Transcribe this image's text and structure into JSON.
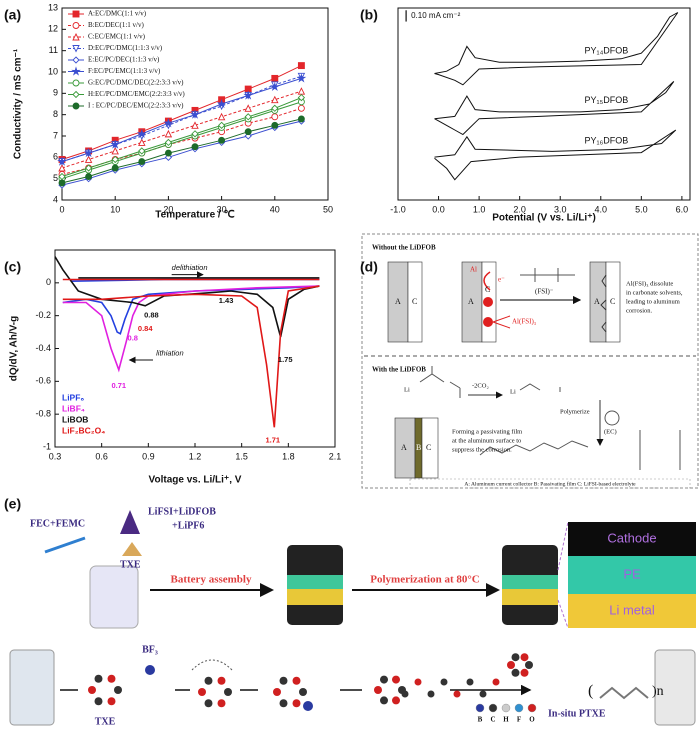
{
  "chart_data": [
    {
      "type": "line",
      "panel_label": "(a)",
      "xlabel": "Temperature / ℃",
      "ylabel": "Conductivity / mS cm⁻¹",
      "x": [
        0,
        5,
        10,
        15,
        20,
        25,
        30,
        35,
        40,
        45
      ],
      "xlim": [
        0,
        50
      ],
      "xticks": [
        0,
        10,
        20,
        30,
        40,
        50
      ],
      "ylim": [
        4,
        13
      ],
      "yticks": [
        4,
        5,
        6,
        7,
        8,
        9,
        10,
        11,
        12,
        13
      ],
      "series": [
        {
          "name": "A:EC/DMC(1:1 v/v)",
          "color": "#e3262b",
          "marker": "square",
          "filled": true,
          "dashed": false,
          "values": [
            5.9,
            6.3,
            6.8,
            7.2,
            7.7,
            8.2,
            8.7,
            9.2,
            9.7,
            10.3
          ]
        },
        {
          "name": "B:EC/DEC(1:1 v/v)",
          "color": "#e3262b",
          "marker": "circle",
          "filled": false,
          "dashed": true,
          "values": [
            5.2,
            5.5,
            5.9,
            6.2,
            6.6,
            6.9,
            7.2,
            7.6,
            7.9,
            8.3
          ]
        },
        {
          "name": "C:EC/EMC(1:1 v/v)",
          "color": "#e3262b",
          "marker": "triangle",
          "filled": false,
          "dashed": true,
          "values": [
            5.5,
            5.9,
            6.3,
            6.7,
            7.1,
            7.5,
            7.9,
            8.3,
            8.7,
            9.1
          ]
        },
        {
          "name": "D:EC/PC/DMC(1:1:3 v/v)",
          "color": "#3b4fd0",
          "marker": "triangle-down",
          "filled": false,
          "dashed": true,
          "values": [
            5.8,
            6.2,
            6.6,
            7.0,
            7.5,
            8.0,
            8.4,
            8.9,
            9.4,
            9.8
          ]
        },
        {
          "name": "E:EC/PC/DEC(1:1:3 v/v)",
          "color": "#3b4fd0",
          "marker": "diamond",
          "filled": false,
          "dashed": false,
          "values": [
            4.7,
            5.0,
            5.4,
            5.7,
            6.0,
            6.4,
            6.7,
            7.0,
            7.4,
            7.7
          ]
        },
        {
          "name": "F:EC/PC/EMC(1:1:3 v/v)",
          "color": "#3b4fd0",
          "marker": "star",
          "filled": true,
          "dashed": false,
          "values": [
            5.8,
            6.2,
            6.6,
            7.1,
            7.6,
            8.0,
            8.5,
            8.9,
            9.3,
            9.7
          ]
        },
        {
          "name": "G:EC/PC/DMC/DEC(2:2:3:3 v/v)",
          "color": "#3a9a3a",
          "marker": "circle",
          "filled": false,
          "dashed": false,
          "values": [
            5.0,
            5.4,
            5.8,
            6.2,
            6.6,
            7.0,
            7.4,
            7.8,
            8.2,
            8.6
          ]
        },
        {
          "name": "H:EC/PC/DMC/EMC(2:2:3:3 v/v)",
          "color": "#3a9a3a",
          "marker": "diamond",
          "filled": false,
          "dashed": false,
          "values": [
            5.1,
            5.5,
            5.9,
            6.3,
            6.7,
            7.1,
            7.5,
            7.9,
            8.3,
            8.8
          ]
        },
        {
          "name": "I : EC/PC/DEC/EMC(2:2:3:3 v/v)",
          "color": "#1d6b2a",
          "marker": "circle",
          "filled": true,
          "dashed": false,
          "values": [
            4.8,
            5.1,
            5.5,
            5.8,
            6.2,
            6.5,
            6.8,
            7.2,
            7.5,
            7.8
          ]
        }
      ]
    },
    {
      "type": "line",
      "panel_label": "(b)",
      "xlabel": "Potential (V vs. Li/Li⁺)",
      "xlim": [
        -1,
        6.2
      ],
      "xticks": [
        {
          "value": -1,
          "label": "-1.0"
        },
        {
          "value": 0,
          "label": "0.0"
        },
        {
          "value": 1,
          "label": "1.0"
        },
        {
          "value": 2,
          "label": "2.0"
        },
        {
          "value": 3,
          "label": "3.0"
        },
        {
          "value": 4,
          "label": "4.0"
        },
        {
          "value": 5,
          "label": "5.0"
        },
        {
          "value": 6,
          "label": "6.0"
        }
      ],
      "ylim": [
        0,
        1.7
      ],
      "scale_bar": {
        "value": 0.1,
        "label": "0.10 mA cm⁻²"
      },
      "series": [
        {
          "name": "PY₁₄DFOB",
          "color": "#111111",
          "x": [
            -0.1,
            0.2,
            0.5,
            0.7,
            0.9,
            1.5,
            2.5,
            3.5,
            4.5,
            5.0,
            5.4,
            5.7,
            5.9,
            5.0,
            2.5,
            1.0,
            0.6,
            0.4,
            0.0,
            -0.1
          ],
          "values": [
            1.12,
            1.14,
            1.2,
            1.36,
            1.26,
            1.22,
            1.22,
            1.23,
            1.25,
            1.3,
            1.45,
            1.62,
            1.66,
            1.2,
            1.18,
            1.16,
            1.02,
            1.06,
            1.11,
            1.12
          ]
        },
        {
          "name": "PY₁₅DFOB",
          "color": "#111111",
          "x": [
            -0.1,
            0.4,
            0.7,
            0.9,
            1.5,
            2.8,
            3.5,
            4.5,
            5.2,
            5.6,
            5.8,
            5.0,
            2.5,
            1.0,
            0.6,
            0.4,
            0.0,
            -0.1
          ],
          "values": [
            0.72,
            0.74,
            0.92,
            0.8,
            0.78,
            0.78,
            0.78,
            0.8,
            0.85,
            0.95,
            1.05,
            0.78,
            0.74,
            0.72,
            0.58,
            0.62,
            0.7,
            0.72
          ]
        },
        {
          "name": "PY₁₆DFOB",
          "color": "#111111",
          "x": [
            -0.1,
            0.4,
            0.7,
            0.9,
            2.8,
            4.5,
            5.5,
            5.85,
            5.0,
            2.0,
            0.8,
            0.4,
            0.2,
            -0.1
          ],
          "values": [
            0.38,
            0.4,
            0.56,
            0.45,
            0.43,
            0.45,
            0.5,
            0.62,
            0.42,
            0.38,
            0.34,
            0.18,
            0.28,
            0.37
          ]
        }
      ]
    },
    {
      "type": "line",
      "panel_label": "(c)",
      "xlabel": "Voltage vs. Li/Li⁺, V",
      "ylabel": "dQ/dV, Ah/V-g",
      "xlim": [
        0.3,
        2.1
      ],
      "xticks": [
        0.3,
        0.6,
        0.9,
        1.2,
        1.5,
        1.8,
        2.1
      ],
      "ylim": [
        -1,
        0.2
      ],
      "yticks": [
        -1,
        -0.8,
        -0.6,
        -0.4,
        -0.2,
        0
      ],
      "series": [
        {
          "name": "LiPF₆",
          "color": "#2340e0",
          "x": [
            0.35,
            0.5,
            0.6,
            0.66,
            0.7,
            0.72,
            0.75,
            0.8,
            0.9,
            1.2,
            1.5,
            1.8,
            2.0,
            null,
            0.4,
            1.0,
            1.6,
            2.0
          ],
          "values": [
            -0.12,
            -0.1,
            -0.12,
            -0.2,
            -0.3,
            -0.31,
            -0.22,
            -0.1,
            -0.07,
            -0.05,
            -0.04,
            -0.03,
            -0.02,
            null,
            0.01,
            0.02,
            0.02,
            0.02
          ]
        },
        {
          "name": "LiBF₄",
          "color": "#e020e0",
          "x": [
            0.35,
            0.5,
            0.6,
            0.66,
            0.71,
            0.76,
            0.8,
            0.84,
            0.9,
            1.2,
            1.6,
            2.0
          ],
          "values": [
            -0.12,
            -0.12,
            -0.2,
            -0.4,
            -0.53,
            -0.35,
            -0.2,
            -0.12,
            -0.08,
            -0.05,
            -0.03,
            -0.02
          ]
        },
        {
          "name": "LiBOB",
          "color": "#111111",
          "x": [
            0.3,
            0.35,
            0.45,
            0.6,
            0.8,
            0.88,
            1.0,
            1.3,
            1.43,
            1.6,
            1.7,
            1.75,
            1.8,
            1.9,
            2.0,
            null,
            0.45,
            1.0,
            1.6,
            2.0
          ],
          "values": [
            0.16,
            0.08,
            -0.05,
            -0.1,
            -0.12,
            -0.14,
            -0.08,
            -0.06,
            -0.05,
            -0.07,
            -0.15,
            -0.33,
            -0.1,
            -0.04,
            -0.02,
            null,
            0.03,
            0.03,
            0.03,
            0.03
          ]
        },
        {
          "name": "LiF₂BC₂O₄",
          "color": "#e01818",
          "x": [
            0.35,
            0.6,
            0.9,
            1.2,
            1.5,
            1.6,
            1.66,
            1.71,
            1.75,
            1.8,
            2.0,
            null,
            0.35,
            1.0,
            1.6,
            2.0
          ],
          "values": [
            -0.1,
            -0.1,
            -0.08,
            -0.07,
            -0.08,
            -0.15,
            -0.5,
            -0.88,
            -0.3,
            -0.05,
            -0.02,
            null,
            0.02,
            0.02,
            0.02,
            0.02
          ]
        }
      ],
      "annotations": [
        {
          "text": "delithiation",
          "color": "#111111"
        },
        {
          "text": "lithiation",
          "color": "#111111"
        },
        {
          "text": "0.88",
          "color": "#111111"
        },
        {
          "text": "1.43",
          "color": "#111111"
        },
        {
          "text": "1.75",
          "color": "#111111"
        },
        {
          "text": "0.84",
          "color": "#e01818"
        },
        {
          "text": "0.8",
          "color": "#e020e0"
        },
        {
          "text": "0.71",
          "color": "#e020e0"
        },
        {
          "text": "1.71",
          "color": "#e01818"
        }
      ]
    }
  ],
  "panel_d": {
    "label": "(d)",
    "top_title": "Without the LiDFOB",
    "bottom_title": "With the LiDFOB",
    "electrodes": [
      "A",
      "C"
    ],
    "al": "Al",
    "electron": "e⁻",
    "fsi": "(FSI)⁻",
    "alfsi3": "Al(FSI)₃",
    "top_note": [
      "Al(FSI)₃ dissolute",
      "in carbonate solvents,",
      "leading to aluminum",
      "corrosion."
    ],
    "li": "Li",
    "co2": "-2CO₂",
    "polymerize": "Polymerize",
    "ec": "(EC)",
    "bottom_electrodes": [
      "A",
      "B",
      "C"
    ],
    "bottom_note": [
      "Forming a passivating film",
      "at the aluminum surface to",
      "suppress the corrosion."
    ],
    "footer": "A: Aluminum current collector    B: Passivating film    C: LiFSI-based electrolyte"
  },
  "panel_e": {
    "label": "(e)",
    "solvent": "FEC+FEMC",
    "salts": [
      "LiFSI+LiDFOB",
      "+LiPF6"
    ],
    "txe": "TXE",
    "step1": "Battery assembly",
    "step2": "Polymerization at 80°C",
    "layers": [
      "Cathode",
      "PE",
      "Li metal"
    ],
    "txe_bottom": "TXE",
    "bf3": "BF₃",
    "polymer_open": "(",
    "polymer_close": ")n",
    "product": "In-situ PTXE",
    "atoms": [
      "B",
      "C",
      "H",
      "F",
      "O"
    ]
  }
}
